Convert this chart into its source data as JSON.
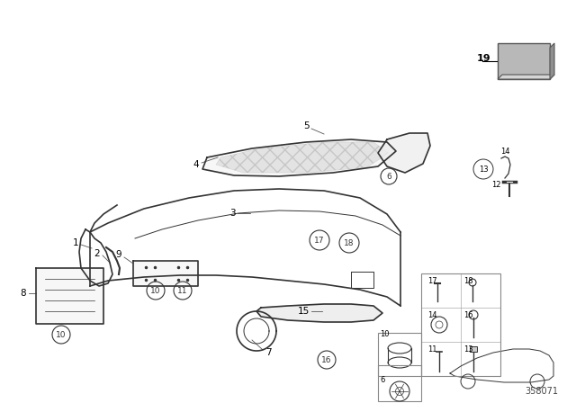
{
  "title": "",
  "bg_color": "#ffffff",
  "diagram_number": "358071",
  "line_color": "#333333",
  "label_color": "#000000",
  "grid_line_color": "#aaaaaa",
  "font_size_label": 8,
  "font_size_diagram_num": 7
}
